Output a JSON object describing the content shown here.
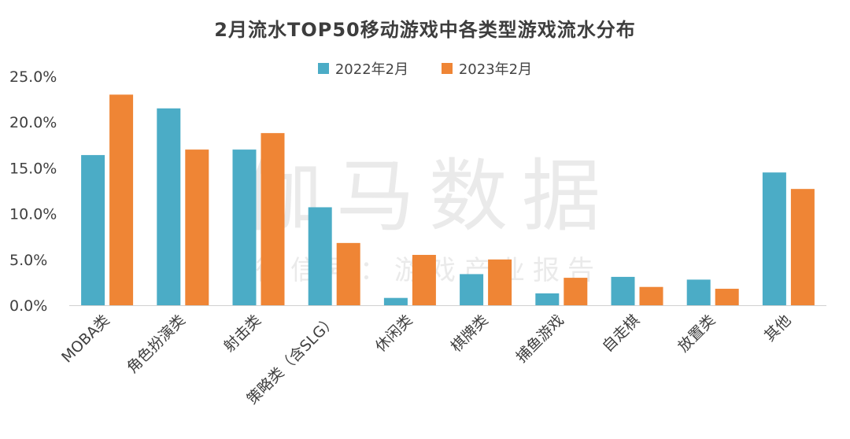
{
  "chart_data": {
    "type": "bar",
    "title": "2月流水TOP50移动游戏中各类型游戏流水分布",
    "xlabel": "",
    "ylabel": "",
    "ylim": [
      0,
      25
    ],
    "yticks": [
      "0.0%",
      "5.0%",
      "10.0%",
      "15.0%",
      "20.0%",
      "25.0%"
    ],
    "categories": [
      "MOBA类",
      "角色扮演类",
      "射击类",
      "策略类（含SLG）",
      "休闲类",
      "棋牌类",
      "捕鱼游戏",
      "自走棋",
      "放置类",
      "其他"
    ],
    "series": [
      {
        "name": "2022年2月",
        "color": "#4bacc6",
        "values": [
          16.4,
          21.5,
          17.0,
          10.7,
          0.8,
          3.4,
          1.3,
          3.1,
          2.8,
          14.5
        ]
      },
      {
        "name": "2023年2月",
        "color": "#ef8535",
        "values": [
          23.0,
          17.0,
          18.8,
          6.8,
          5.5,
          5.0,
          3.0,
          2.0,
          1.8,
          12.7
        ]
      }
    ],
    "legend_position": "top-center",
    "watermark": {
      "main": "伽马数据",
      "sub": "微信号：游戏产业报告"
    }
  }
}
